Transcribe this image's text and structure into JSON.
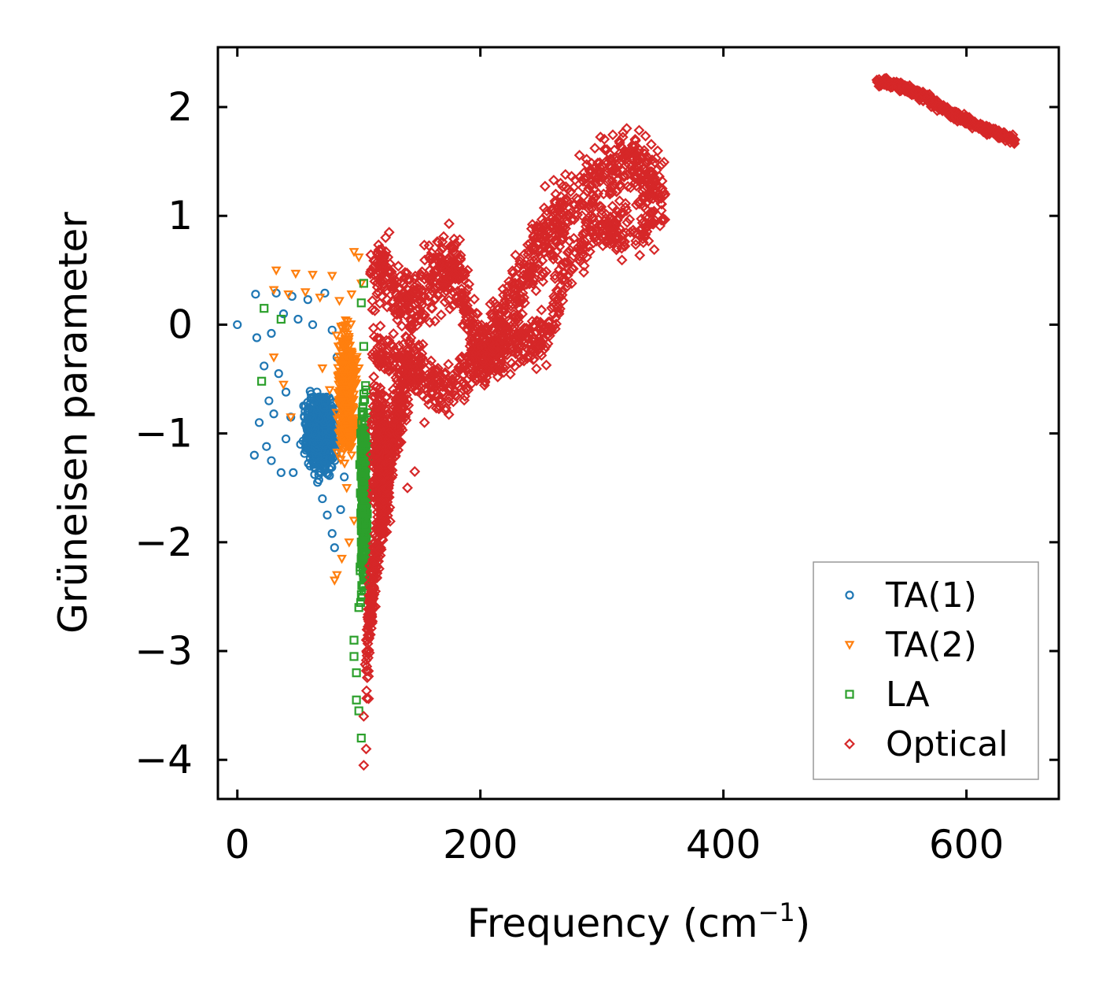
{
  "chart_data": {
    "type": "scatter",
    "xlabel": "Frequency (cm",
    "xlabel_sup": "−1",
    "xlabel_end": ")",
    "ylabel": "Grüneisen parameter",
    "xlim": [
      -16,
      676
    ],
    "ylim": [
      -4.36,
      2.55
    ],
    "x_ticks": [
      0,
      200,
      400,
      600
    ],
    "x_tick_labels": [
      "0",
      "200",
      "400",
      "600"
    ],
    "y_ticks": [
      2,
      1,
      0,
      -1,
      -2,
      -3,
      -4
    ],
    "y_tick_labels": [
      "2",
      "1",
      "0",
      "−1",
      "−2",
      "−3",
      "−4"
    ],
    "grid": false,
    "legend_position": "lower-right",
    "series": [
      {
        "name": "TA(1)",
        "marker": "circle",
        "color": "#1f77b4",
        "points": [
          [
            0,
            0
          ],
          [
            15,
            0.28
          ],
          [
            32,
            0.29
          ],
          [
            45,
            0.26
          ],
          [
            58,
            0.23
          ],
          [
            72,
            0.29
          ],
          [
            16,
            -0.12
          ],
          [
            28,
            -0.08
          ],
          [
            38,
            0.1
          ],
          [
            50,
            0.05
          ],
          [
            62,
            0.0
          ],
          [
            78,
            -0.05
          ],
          [
            22,
            -0.38
          ],
          [
            34,
            -0.45
          ],
          [
            40,
            -0.62
          ],
          [
            26,
            -0.7
          ],
          [
            30,
            -0.82
          ],
          [
            18,
            -0.9
          ],
          [
            24,
            -1.12
          ],
          [
            14,
            -1.2
          ],
          [
            28,
            -1.25
          ],
          [
            36,
            -1.36
          ],
          [
            46,
            -1.36
          ],
          [
            52,
            -1.1
          ],
          [
            60,
            -1.3
          ],
          [
            66,
            -1.45
          ],
          [
            70,
            -1.6
          ],
          [
            74,
            -1.75
          ],
          [
            78,
            -1.92
          ],
          [
            80,
            -2.05
          ],
          [
            85,
            -1.7
          ],
          [
            88,
            -1.4
          ],
          [
            90,
            -1.0
          ],
          [
            86,
            -0.6
          ],
          [
            82,
            -0.3
          ],
          [
            56,
            -0.75
          ],
          [
            64,
            -0.95
          ],
          [
            44,
            -0.85
          ],
          [
            40,
            -1.05
          ]
        ],
        "cloud": {
          "x_center": 68,
          "x_spread": 16,
          "y_center": -1.0,
          "y_spread": 0.45,
          "count": 700
        }
      },
      {
        "name": "TA(2)",
        "marker": "triangle-down",
        "color": "#ff7f0e",
        "points": [
          [
            32,
            0.5
          ],
          [
            48,
            0.47
          ],
          [
            62,
            0.46
          ],
          [
            78,
            0.45
          ],
          [
            96,
            0.67
          ],
          [
            100,
            0.62
          ],
          [
            30,
            0.32
          ],
          [
            42,
            0.28
          ],
          [
            56,
            0.3
          ],
          [
            68,
            0.25
          ],
          [
            84,
            0.22
          ],
          [
            94,
            0.28
          ],
          [
            102,
            0.38
          ],
          [
            30,
            -0.3
          ],
          [
            38,
            -0.55
          ],
          [
            44,
            -0.85
          ],
          [
            86,
            -2.15
          ],
          [
            82,
            -2.3
          ],
          [
            80,
            -2.35
          ],
          [
            92,
            -2.0
          ],
          [
            96,
            -1.8
          ],
          [
            90,
            -1.5
          ],
          [
            94,
            -1.2
          ],
          [
            98,
            -0.9
          ],
          [
            100,
            -0.4
          ],
          [
            84,
            -0.2
          ],
          [
            76,
            -0.6
          ],
          [
            70,
            -0.4
          ]
        ],
        "cloud": {
          "x_center": 90,
          "x_spread": 10,
          "y_center": -0.6,
          "y_spread": 0.8,
          "count": 450
        }
      },
      {
        "name": "LA",
        "marker": "square",
        "color": "#2ca02c",
        "points": [
          [
            22,
            0.15
          ],
          [
            36,
            0.05
          ],
          [
            20,
            -0.52
          ],
          [
            104,
            0.38
          ],
          [
            102,
            0.2
          ],
          [
            96,
            -2.9
          ],
          [
            98,
            -3.2
          ],
          [
            98,
            -3.45
          ],
          [
            100,
            -3.55
          ],
          [
            102,
            -3.8
          ],
          [
            96,
            -3.05
          ],
          [
            100,
            -2.6
          ],
          [
            104,
            -2.2
          ],
          [
            106,
            -1.8
          ],
          [
            108,
            -1.2
          ],
          [
            106,
            -0.6
          ],
          [
            104,
            -0.2
          ]
        ],
        "cloud": {
          "x_center": 104,
          "x_spread": 4,
          "y_center": -1.6,
          "y_spread": 1.2,
          "count": 300
        }
      },
      {
        "name": "Optical",
        "marker": "diamond",
        "color": "#d62728",
        "points": [
          [
            104,
            -4.05
          ],
          [
            106,
            -3.9
          ],
          [
            104,
            -3.6
          ],
          [
            122,
            0.8
          ],
          [
            124,
            0.62
          ],
          [
            118,
            0.68
          ],
          [
            138,
            0.48
          ],
          [
            146,
            0.3
          ],
          [
            150,
            -0.2
          ],
          [
            154,
            -0.9
          ],
          [
            146,
            -1.35
          ],
          [
            140,
            -1.5
          ],
          [
            176,
            -0.55
          ],
          [
            182,
            -0.5
          ],
          [
            190,
            -0.6
          ],
          [
            216,
            -0.3
          ],
          [
            232,
            -0.1
          ],
          [
            262,
            1.2
          ],
          [
            266,
            1.3
          ],
          [
            270,
            1.38
          ],
          [
            320,
            1.52
          ],
          [
            340,
            1.38
          ],
          [
            352,
            1.2
          ]
        ],
        "bands": [
          {
            "path": [
              [
                110,
                0.4
              ],
              [
                120,
                0.6
              ],
              [
                130,
                0.3
              ],
              [
                140,
                0.2
              ],
              [
                150,
                0.3
              ],
              [
                160,
                0.45
              ],
              [
                170,
                0.5
              ],
              [
                178,
                0.6
              ],
              [
                186,
                0.3
              ],
              [
                194,
                -0.1
              ],
              [
                204,
                -0.3
              ],
              [
                214,
                0.0
              ],
              [
                222,
                0.1
              ],
              [
                232,
                0.3
              ],
              [
                242,
                0.6
              ],
              [
                252,
                0.8
              ],
              [
                262,
                0.9
              ],
              [
                270,
                1.0
              ],
              [
                282,
                1.2
              ],
              [
                294,
                1.3
              ],
              [
                306,
                1.42
              ],
              [
                318,
                1.5
              ],
              [
                330,
                1.48
              ],
              [
                342,
                1.35
              ],
              [
                352,
                1.22
              ]
            ],
            "width": 0.5,
            "count": 1000
          },
          {
            "path": [
              [
                112,
                -0.2
              ],
              [
                126,
                -0.3
              ],
              [
                140,
                -0.4
              ],
              [
                154,
                -0.5
              ],
              [
                166,
                -0.6
              ],
              [
                180,
                -0.55
              ],
              [
                194,
                -0.35
              ],
              [
                206,
                -0.2
              ],
              [
                218,
                -0.3
              ],
              [
                230,
                -0.2
              ],
              [
                242,
                -0.1
              ],
              [
                254,
                -0.15
              ],
              [
                264,
                0.3
              ],
              [
                276,
                0.6
              ],
              [
                290,
                0.8
              ],
              [
                302,
                0.95
              ],
              [
                316,
                0.85
              ],
              [
                330,
                0.88
              ],
              [
                344,
                0.95
              ]
            ],
            "width": 0.35,
            "count": 650
          },
          {
            "path": [
              [
                106,
                -3.1
              ],
              [
                110,
                -2.5
              ],
              [
                116,
                -2.0
              ],
              [
                122,
                -1.5
              ],
              [
                128,
                -1.0
              ],
              [
                134,
                -0.7
              ],
              [
                144,
                -0.3
              ]
            ],
            "width": 0.5,
            "count": 450
          },
          {
            "path": [
              [
                526,
                2.23
              ],
              [
                545,
                2.2
              ],
              [
                560,
                2.12
              ],
              [
                575,
                2.03
              ],
              [
                590,
                1.93
              ],
              [
                605,
                1.85
              ],
              [
                620,
                1.78
              ],
              [
                640,
                1.7
              ]
            ],
            "width": 0.06,
            "count": 450
          }
        ],
        "cloud": {
          "x_center": 118,
          "x_spread": 10,
          "y_center": -1.2,
          "y_spread": 1.0,
          "count": 300
        }
      }
    ]
  }
}
